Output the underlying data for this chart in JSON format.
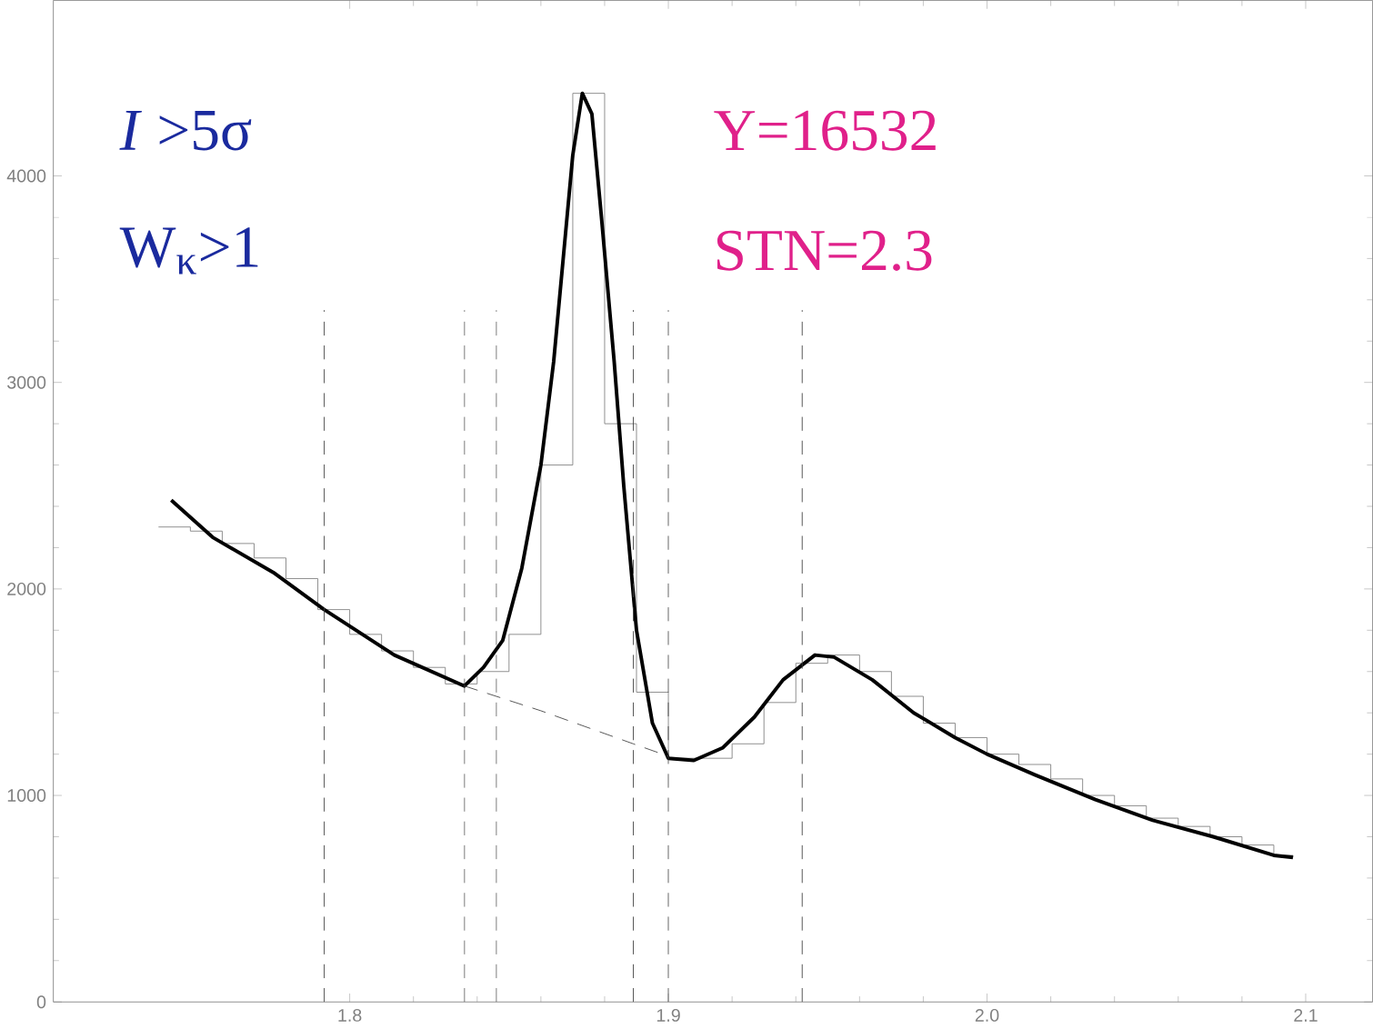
{
  "chart_data": {
    "type": "line",
    "annotations": [
      "*I* >5σ",
      "W$_{κ}$>1",
      "Y=16532",
      "STN=2.3"
    ],
    "xlim": [
      1.707,
      2.121
    ],
    "ylim": [
      0,
      4850
    ],
    "xticks": [
      {
        "value": 1.8,
        "label": "1.8"
      },
      {
        "value": 1.9,
        "label": "1.9"
      },
      {
        "value": 2.0,
        "label": "2.0"
      },
      {
        "value": 2.1,
        "label": "2.1"
      }
    ],
    "yticks": [
      0,
      1000,
      2000,
      3000,
      4000
    ],
    "ref_lines": [
      {
        "axis": "x",
        "value": 1.792,
        "line_style": "dashed",
        "color": "#404040"
      },
      {
        "axis": "x",
        "value": 1.836,
        "line_style": "dashed",
        "color": "#404040"
      },
      {
        "axis": "x",
        "value": 1.846,
        "line_style": "dashed",
        "color": "#404040"
      },
      {
        "axis": "x",
        "value": 1.889,
        "line_style": "dashed",
        "color": "#404040"
      },
      {
        "axis": "x",
        "value": 1.9,
        "line_style": "dashed",
        "color": "#404040"
      },
      {
        "axis": "x",
        "value": 1.942,
        "line_style": "dashed",
        "color": "#404040"
      }
    ],
    "series": [
      {
        "type": "step",
        "color": "#808080",
        "x": [
          1.74,
          1.75,
          1.76,
          1.77,
          1.78,
          1.79,
          1.8,
          1.81,
          1.82,
          1.83,
          1.84,
          1.85,
          1.86,
          1.87,
          1.88,
          1.89,
          1.9,
          1.91,
          1.92,
          1.93,
          1.94,
          1.95,
          1.96,
          1.97,
          1.98,
          1.99,
          2.0,
          2.01,
          2.02,
          2.03,
          2.04,
          2.05,
          2.06,
          2.07,
          2.08,
          2.09,
          2.096
        ],
        "values": [
          2300,
          2280,
          2220,
          2150,
          2050,
          1900,
          1780,
          1700,
          1620,
          1540,
          1600,
          1780,
          2600,
          4400,
          2800,
          1500,
          1180,
          1180,
          1250,
          1450,
          1640,
          1680,
          1600,
          1480,
          1350,
          1280,
          1200,
          1150,
          1080,
          1000,
          950,
          890,
          850,
          800,
          760,
          710,
          700
        ]
      },
      {
        "color": "#000000",
        "x": [
          1.744,
          1.757,
          1.776,
          1.792,
          1.814,
          1.836,
          1.842,
          1.848,
          1.854,
          1.86,
          1.864,
          1.867,
          1.87,
          1.873,
          1.876,
          1.879,
          1.883,
          1.886,
          1.89,
          1.895,
          1.9,
          1.908,
          1.917,
          1.927,
          1.936,
          1.946,
          1.952,
          1.964,
          1.977,
          1.99,
          2.0,
          2.015,
          2.034,
          2.052,
          2.071,
          2.09,
          2.096
        ],
        "values": [
          2430,
          2250,
          2080,
          1900,
          1680,
          1530,
          1620,
          1750,
          2100,
          2600,
          3100,
          3600,
          4100,
          4400,
          4300,
          3800,
          3100,
          2500,
          1800,
          1350,
          1180,
          1170,
          1230,
          1380,
          1560,
          1680,
          1670,
          1560,
          1400,
          1280,
          1200,
          1100,
          980,
          880,
          800,
          710,
          700
        ]
      },
      {
        "line_style": "dashed",
        "color": "#404040",
        "x": [
          1.836,
          1.86,
          1.889,
          1.9
        ],
        "values": [
          1530,
          1410,
          1250,
          1190
        ]
      }
    ]
  }
}
